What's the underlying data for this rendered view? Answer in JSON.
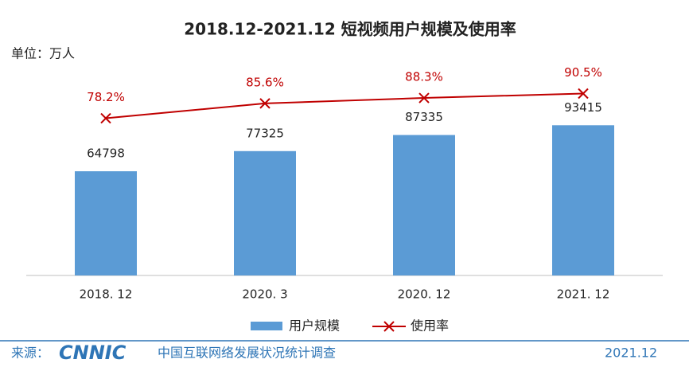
{
  "chart_data": {
    "type": "bar",
    "title": "2018.12-2021.12 短视频用户规模及使用率",
    "unit_label": "单位：万人",
    "categories": [
      "2018. 12",
      "2020. 3",
      "2020. 12",
      "2021. 12"
    ],
    "series": [
      {
        "name": "用户规模",
        "type": "bar",
        "color": "#5b9bd5",
        "values": [
          64798,
          77325,
          87335,
          93415
        ]
      },
      {
        "name": "使用率",
        "type": "line",
        "axis": "y2",
        "color": "#c00000",
        "values": [
          78.2,
          85.6,
          88.3,
          90.5
        ],
        "value_labels": [
          "78.2%",
          "85.6%",
          "88.3%",
          "90.5%"
        ]
      }
    ],
    "ylim": [
      0,
      100000
    ],
    "y2lim": [
      0,
      80
    ],
    "legend": "bottom"
  },
  "footer": {
    "source_label": "来源：",
    "logo": "CNNIC",
    "source": "中国互联网络发展状况统计调查",
    "date": "2021.12"
  }
}
